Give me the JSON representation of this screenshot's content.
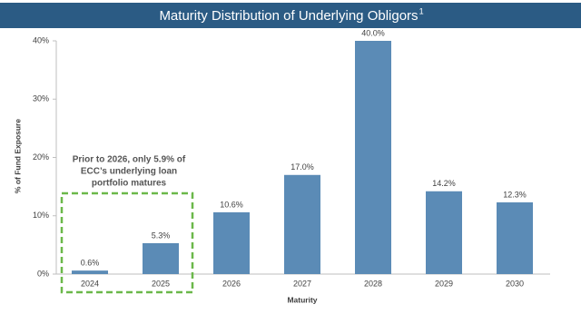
{
  "chart_data": {
    "type": "bar",
    "title": "Maturity Distribution of Underlying Obligors",
    "title_footnote": "1",
    "y_label": "% of Fund Exposure",
    "x_label": "Maturity",
    "categories": [
      "2024",
      "2025",
      "2026",
      "2027",
      "2028",
      "2029",
      "2030"
    ],
    "values": [
      0.6,
      5.3,
      10.6,
      17.0,
      40.0,
      14.2,
      12.3
    ],
    "value_labels": [
      "0.6%",
      "5.3%",
      "10.6%",
      "17.0%",
      "40.0%",
      "14.2%",
      "12.3%"
    ],
    "color": "#5b8bb6",
    "ylim": [
      0,
      40
    ],
    "yticks": [
      {
        "value": 0,
        "label": "0%"
      },
      {
        "value": 10,
        "label": "10%"
      },
      {
        "value": 20,
        "label": "20%"
      },
      {
        "value": 30,
        "label": "30%"
      },
      {
        "value": 40,
        "label": "40%"
      }
    ],
    "annotation": [
      "Prior to 2026, only 5.9% of",
      "ECC’s underlying loan",
      "portfolio matures"
    ],
    "annotation_color": "#6bb84a"
  }
}
